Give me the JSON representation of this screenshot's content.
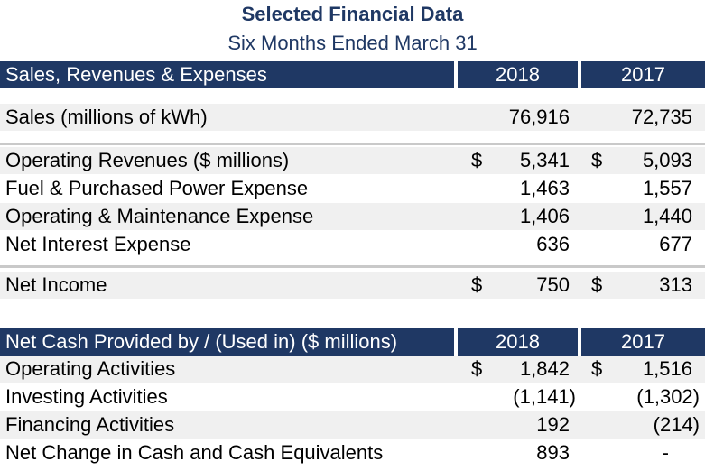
{
  "title": "Selected Financial Data",
  "subtitle": "Six Months Ended March 31",
  "section1": {
    "header": {
      "label": "Sales, Revenues & Expenses",
      "y1": "2018",
      "y2": "2017"
    },
    "rows": [
      {
        "label": "Sales (millions of kWh)",
        "d1": "",
        "v1": "76,916",
        "d2": "",
        "v2": "72,735"
      },
      {
        "label": "Operating Revenues ($ millions)",
        "d1": "$",
        "v1": "5,341",
        "d2": "$",
        "v2": "5,093"
      },
      {
        "label": "Fuel & Purchased Power Expense",
        "d1": "",
        "v1": "1,463",
        "d2": "",
        "v2": "1,557"
      },
      {
        "label": "Operating & Maintenance Expense",
        "d1": "",
        "v1": "1,406",
        "d2": "",
        "v2": "1,440"
      },
      {
        "label": "Net Interest Expense",
        "d1": "",
        "v1": "636",
        "d2": "",
        "v2": "677"
      },
      {
        "label": "Net Income",
        "d1": "$",
        "v1": "750",
        "d2": "$",
        "v2": "313"
      }
    ]
  },
  "section2": {
    "header": {
      "label": "Net Cash Provided by / (Used in) ($ millions)",
      "y1": "2018",
      "y2": "2017"
    },
    "rows": [
      {
        "label": "Operating Activities",
        "d1": "$",
        "v1": "1,842",
        "d2": "$",
        "v2": "1,516"
      },
      {
        "label": "Investing Activities",
        "d1": "",
        "v1": "(1,141)",
        "d2": "",
        "v2": "(1,302)"
      },
      {
        "label": "Financing Activities",
        "d1": "",
        "v1": "192",
        "d2": "",
        "v2": "(214)"
      },
      {
        "label": "Net Change in Cash and Cash Equivalents",
        "d1": "",
        "v1": "893",
        "d2": "",
        "v2": "-"
      }
    ]
  },
  "colors": {
    "header_bg": "#1f3864",
    "title": "#1f3864",
    "shade": "#f0f0f0"
  }
}
